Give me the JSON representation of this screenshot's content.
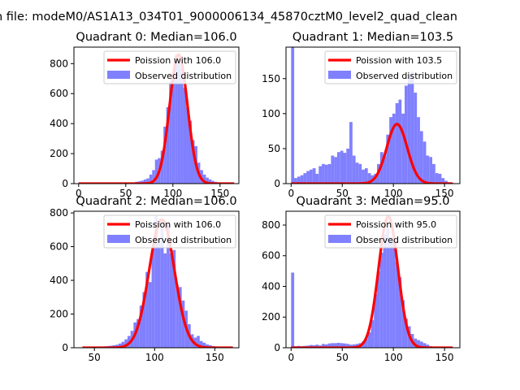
{
  "suptitle": "n file: modeM0/AS1A13_034T01_9000006134_45870cztM0_level2_quad_clean",
  "legend_labels": {
    "fit_prefix": "Poission with ",
    "observed": "Observed distribution"
  },
  "colors": {
    "fit": "#ff0000",
    "observed": "#8080ff",
    "axis": "#000000"
  },
  "chart_data": [
    {
      "type": "bar",
      "title": "Quadrant 0: Median=106.0",
      "median": 106.0,
      "fit_label": "Poission with 106.0",
      "xlim": [
        -5,
        170
      ],
      "ylim": [
        0,
        910
      ],
      "xticks": [
        0,
        50,
        100,
        150
      ],
      "yticks": [
        0,
        200,
        400,
        600,
        800
      ],
      "bin_width": 3,
      "hist_x": [
        39,
        42,
        45,
        48,
        51,
        54,
        57,
        60,
        63,
        66,
        69,
        72,
        75,
        78,
        81,
        84,
        87,
        90,
        93,
        96,
        99,
        102,
        105,
        108,
        111,
        114,
        117,
        120,
        123,
        126,
        129,
        132,
        135,
        138,
        141,
        144,
        147,
        150,
        153,
        156,
        159,
        162
      ],
      "hist_y": [
        2,
        3,
        3,
        4,
        5,
        6,
        8,
        12,
        15,
        20,
        28,
        35,
        60,
        90,
        160,
        170,
        220,
        380,
        510,
        680,
        700,
        860,
        800,
        770,
        640,
        510,
        420,
        290,
        250,
        140,
        90,
        60,
        40,
        28,
        18,
        12,
        8,
        5,
        4,
        3,
        2,
        1
      ],
      "fit_peak": 860,
      "fit_sigma": 9.5,
      "fit_xmin": 0,
      "fit_xmax": 165,
      "legend_position": "upper right"
    },
    {
      "type": "bar",
      "title": "Quadrant 1: Median=103.5",
      "median": 103.5,
      "fit_label": "Poission with 103.5",
      "xlim": [
        -5,
        165
      ],
      "ylim": [
        0,
        195
      ],
      "xticks": [
        0,
        50,
        100,
        150
      ],
      "yticks": [
        0,
        50,
        100,
        150
      ],
      "bin_width": 3,
      "hist_x": [
        0,
        3,
        6,
        9,
        12,
        15,
        18,
        21,
        24,
        27,
        30,
        33,
        36,
        39,
        42,
        45,
        48,
        51,
        54,
        57,
        60,
        63,
        66,
        69,
        72,
        75,
        78,
        81,
        84,
        87,
        90,
        93,
        96,
        99,
        102,
        105,
        108,
        111,
        114,
        117,
        120,
        123,
        126,
        129,
        132,
        135,
        138,
        141,
        144,
        147,
        150,
        153,
        156
      ],
      "hist_y": [
        195,
        8,
        10,
        12,
        15,
        18,
        20,
        22,
        14,
        25,
        28,
        27,
        28,
        40,
        38,
        45,
        47,
        44,
        50,
        88,
        40,
        30,
        28,
        20,
        22,
        15,
        12,
        14,
        28,
        45,
        40,
        70,
        95,
        100,
        115,
        120,
        100,
        140,
        155,
        160,
        130,
        95,
        75,
        60,
        40,
        38,
        28,
        15,
        14,
        8,
        4,
        2,
        1
      ],
      "fit_peak": 85,
      "fit_sigma": 10,
      "fit_xmin": 0,
      "fit_xmax": 158,
      "legend_position": "upper right"
    },
    {
      "type": "bar",
      "title": "Quadrant 2: Median=106.0",
      "median": 106.0,
      "fit_label": "Poission with 106.0",
      "xlim": [
        33,
        170
      ],
      "ylim": [
        0,
        810
      ],
      "xticks": [
        50,
        100,
        150
      ],
      "yticks": [
        0,
        200,
        400,
        600,
        800
      ],
      "bin_width": 2.5,
      "hist_x": [
        40,
        42.5,
        45,
        47.5,
        50,
        52.5,
        55,
        57.5,
        60,
        62.5,
        65,
        67.5,
        70,
        72.5,
        75,
        77.5,
        80,
        82.5,
        85,
        87.5,
        90,
        92.5,
        95,
        97.5,
        100,
        102.5,
        105,
        107.5,
        110,
        112.5,
        115,
        117.5,
        120,
        122.5,
        125,
        127.5,
        130,
        132.5,
        135,
        137.5,
        140,
        142.5,
        145,
        147.5,
        150,
        152.5,
        155,
        157.5,
        160,
        162.5
      ],
      "hist_y": [
        2,
        3,
        3,
        4,
        5,
        5,
        6,
        8,
        10,
        12,
        15,
        18,
        25,
        35,
        50,
        70,
        100,
        150,
        170,
        250,
        330,
        450,
        390,
        600,
        780,
        620,
        720,
        560,
        730,
        560,
        580,
        370,
        360,
        280,
        220,
        140,
        80,
        60,
        70,
        40,
        30,
        20,
        15,
        10,
        8,
        5,
        4,
        3,
        2,
        1
      ],
      "fit_peak": 760,
      "fit_sigma": 10.5,
      "fit_xmin": 40,
      "fit_xmax": 165,
      "legend_position": "upper right"
    },
    {
      "type": "bar",
      "title": "Quadrant 3: Median=95.0",
      "median": 95.0,
      "fit_label": "Poission with 95.0",
      "xlim": [
        -5,
        165
      ],
      "ylim": [
        0,
        890
      ],
      "xticks": [
        0,
        50,
        100,
        150
      ],
      "yticks": [
        0,
        200,
        400,
        600,
        800
      ],
      "bin_width": 3,
      "hist_x": [
        0,
        3,
        6,
        9,
        12,
        15,
        18,
        21,
        24,
        27,
        30,
        33,
        36,
        39,
        42,
        45,
        48,
        51,
        54,
        57,
        60,
        63,
        66,
        69,
        72,
        75,
        78,
        81,
        84,
        87,
        90,
        93,
        96,
        99,
        102,
        105,
        108,
        111,
        114,
        117,
        120,
        123,
        126,
        129,
        132,
        135,
        138,
        141,
        144,
        147,
        150,
        153,
        156
      ],
      "hist_y": [
        490,
        10,
        12,
        10,
        12,
        14,
        18,
        16,
        20,
        15,
        25,
        22,
        28,
        30,
        30,
        32,
        30,
        28,
        25,
        20,
        22,
        25,
        30,
        40,
        60,
        100,
        180,
        350,
        500,
        620,
        740,
        780,
        720,
        700,
        560,
        460,
        310,
        190,
        140,
        90,
        60,
        50,
        40,
        30,
        20,
        10,
        8,
        5,
        4,
        3,
        2,
        1,
        1
      ],
      "fit_peak": 855,
      "fit_sigma": 9.5,
      "fit_xmin": 0,
      "fit_xmax": 158,
      "legend_position": "upper right"
    }
  ]
}
